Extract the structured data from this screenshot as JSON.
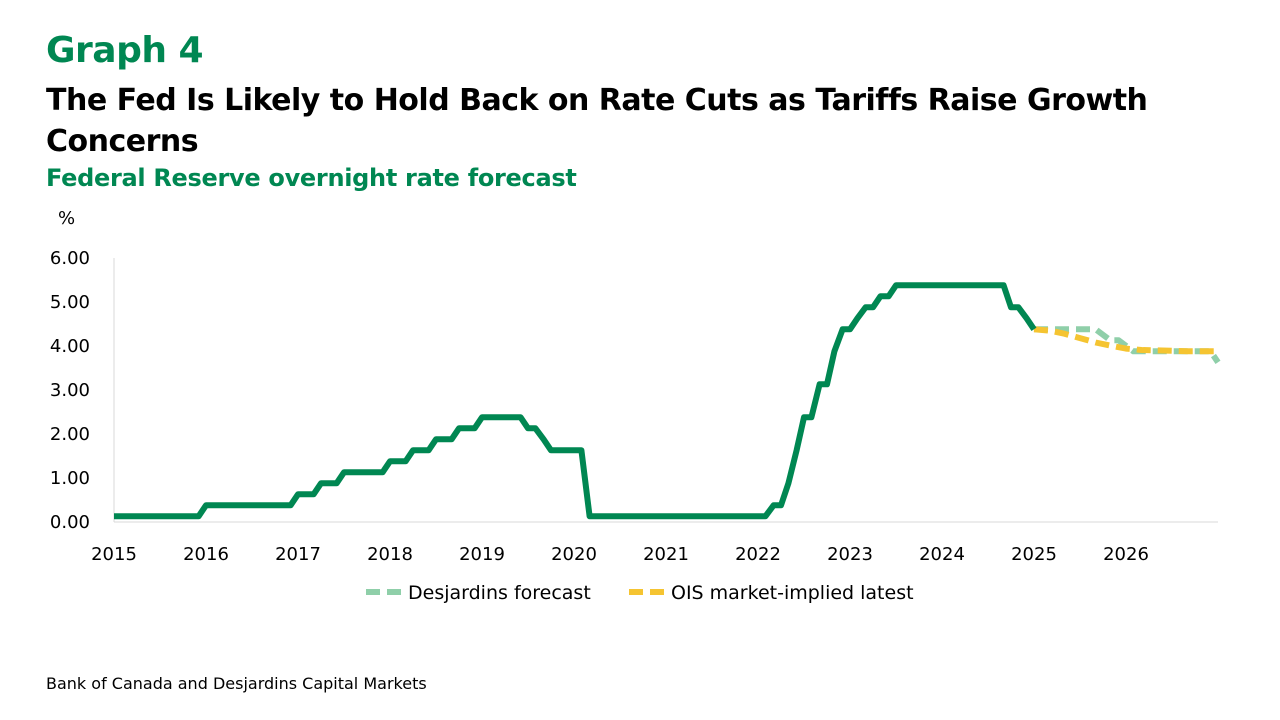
{
  "header": {
    "graph_number": "Graph 4",
    "title": "The Fed Is Likely to Hold Back on Rate Cuts as Tariffs Raise Growth Concerns",
    "subtitle": "Federal Reserve overnight rate forecast"
  },
  "footer": {
    "source": "Bank of Canada and Desjardins Capital Markets"
  },
  "colors": {
    "historical": "#008752",
    "desjardins_forecast": "#8fcfa9",
    "ois": "#f5c431",
    "brand_green": "#008752"
  },
  "chart_data": {
    "type": "line",
    "ylabel": "%",
    "ylim": [
      0,
      6
    ],
    "xlim": [
      2015,
      2027
    ],
    "y_ticks": [
      "0.00",
      "1.00",
      "2.00",
      "3.00",
      "4.00",
      "5.00",
      "6.00"
    ],
    "x_ticks": [
      "2015",
      "2016",
      "2017",
      "2018",
      "2019",
      "2020",
      "2021",
      "2022",
      "2023",
      "2024",
      "2025",
      "2026"
    ],
    "grid": false,
    "legend_position": "bottom",
    "series": [
      {
        "key": "historical",
        "x": [
          2015.0,
          2015.92,
          2016.0,
          2016.92,
          2017.0,
          2017.17,
          2017.25,
          2017.42,
          2017.5,
          2017.92,
          2018.0,
          2018.17,
          2018.25,
          2018.42,
          2018.5,
          2018.67,
          2018.75,
          2018.92,
          2019.0,
          2019.42,
          2019.5,
          2019.58,
          2019.67,
          2019.75,
          2019.83,
          2020.08,
          2020.17,
          2022.08,
          2022.17,
          2022.25,
          2022.33,
          2022.42,
          2022.5,
          2022.58,
          2022.67,
          2022.75,
          2022.83,
          2022.92,
          2023.0,
          2023.08,
          2023.17,
          2023.25,
          2023.33,
          2023.42,
          2023.5,
          2023.58,
          2023.67,
          2024.67,
          2024.75,
          2024.83,
          2024.92,
          2025.0
        ],
        "values": [
          0.13,
          0.13,
          0.38,
          0.38,
          0.63,
          0.63,
          0.88,
          0.88,
          1.13,
          1.13,
          1.38,
          1.38,
          1.63,
          1.63,
          1.88,
          1.88,
          2.13,
          2.13,
          2.38,
          2.38,
          2.13,
          2.13,
          1.88,
          1.63,
          1.63,
          1.63,
          0.13,
          0.13,
          0.38,
          0.38,
          0.88,
          1.63,
          2.38,
          2.38,
          3.13,
          3.13,
          3.88,
          4.38,
          4.38,
          4.63,
          4.88,
          4.88,
          5.13,
          5.13,
          5.38,
          5.38,
          5.38,
          5.38,
          4.88,
          4.88,
          4.63,
          4.38
        ]
      },
      {
        "key": "desjardins",
        "name": "Desjardins forecast",
        "x": [
          2025.0,
          2025.67,
          2025.83,
          2025.92,
          2026.08,
          2026.92,
          2027.0
        ],
        "values": [
          4.38,
          4.38,
          4.13,
          4.13,
          3.88,
          3.88,
          3.63
        ]
      },
      {
        "key": "ois",
        "name": "OIS market-implied latest",
        "x": [
          2025.0,
          2025.17,
          2025.33,
          2025.5,
          2025.67,
          2025.83,
          2026.0,
          2026.17,
          2026.33,
          2026.5,
          2026.67,
          2026.83,
          2027.0
        ],
        "values": [
          4.38,
          4.35,
          4.28,
          4.18,
          4.08,
          4.01,
          3.94,
          3.91,
          3.9,
          3.89,
          3.88,
          3.88,
          3.88
        ]
      }
    ]
  }
}
